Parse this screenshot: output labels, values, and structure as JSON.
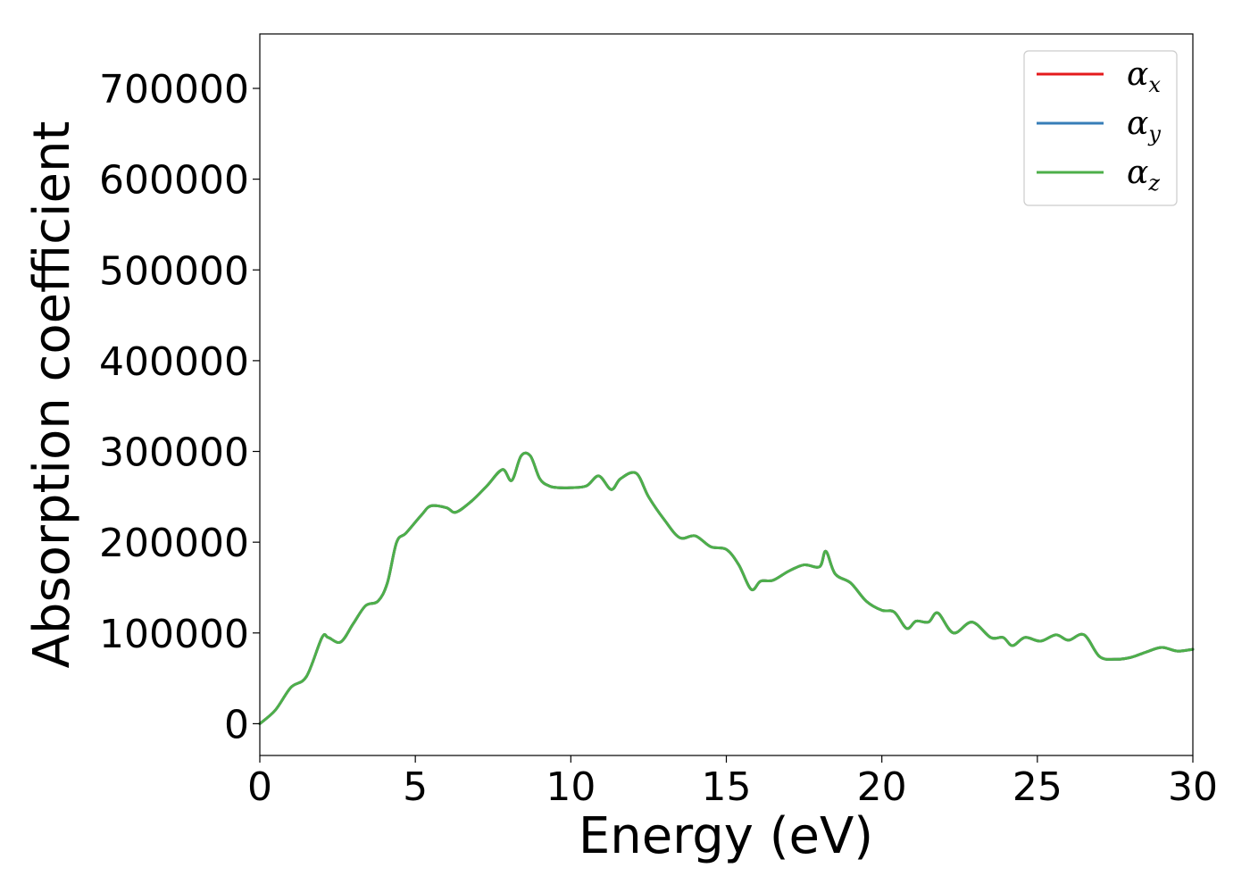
{
  "chart_data": {
    "type": "line",
    "title": "",
    "xlabel": "Energy (eV)",
    "ylabel": "Absorption coefficient",
    "xlim": [
      0,
      30
    ],
    "ylim": [
      -35000,
      760000
    ],
    "xticks": [
      0,
      5,
      10,
      15,
      20,
      25,
      30
    ],
    "yticks": [
      0,
      100000,
      200000,
      300000,
      400000,
      500000,
      600000,
      700000
    ],
    "xtick_labels": [
      "0",
      "5",
      "10",
      "15",
      "20",
      "25",
      "30"
    ],
    "ytick_labels": [
      "0",
      "100000",
      "200000",
      "300000",
      "400000",
      "500000",
      "600000",
      "700000"
    ],
    "grid": false,
    "legend_position": "top-right",
    "series": [
      {
        "name": "α_x",
        "symbol": "α",
        "subscript": "x",
        "color": "#e41a1c",
        "x": [
          0,
          0.5,
          1,
          1.5,
          2,
          2.2,
          2.6,
          3,
          3.4,
          3.8,
          4.1,
          4.4,
          4.7,
          5.2,
          5.5,
          6.0,
          6.3,
          6.8,
          7.3,
          7.8,
          8.1,
          8.4,
          8.7,
          9.0,
          9.3,
          9.6,
          10.0,
          10.5,
          10.9,
          11.3,
          11.6,
          12.1,
          12.5,
          13.0,
          13.5,
          14.0,
          14.5,
          15.0,
          15.4,
          15.8,
          16.1,
          16.5,
          17.0,
          17.5,
          18.0,
          18.2,
          18.5,
          19.0,
          19.5,
          20.0,
          20.4,
          20.8,
          21.1,
          21.5,
          21.8,
          22.3,
          22.9,
          23.5,
          23.9,
          24.2,
          24.6,
          25.1,
          25.6,
          26.0,
          26.5,
          27.0,
          27.5,
          28.0,
          28.5,
          29.0,
          29.5,
          30.0
        ],
        "y": [
          0,
          15000,
          40000,
          52000,
          95000,
          95000,
          90000,
          110000,
          130000,
          135000,
          155000,
          200000,
          210000,
          230000,
          240000,
          238000,
          233000,
          245000,
          262000,
          280000,
          268000,
          295000,
          295000,
          270000,
          262000,
          260000,
          260000,
          262000,
          273000,
          258000,
          270000,
          276000,
          250000,
          225000,
          205000,
          207000,
          195000,
          192000,
          175000,
          148000,
          157000,
          158000,
          168000,
          175000,
          173000,
          190000,
          165000,
          155000,
          135000,
          125000,
          123000,
          105000,
          113000,
          112000,
          122000,
          100000,
          112000,
          95000,
          95000,
          86000,
          95000,
          91000,
          98000,
          92000,
          98000,
          74000,
          71000,
          73000,
          79000,
          84000,
          80000,
          82000
        ]
      },
      {
        "name": "α_y",
        "symbol": "α",
        "subscript": "y",
        "color": "#377eb8",
        "x": [
          0,
          0.5,
          1,
          1.5,
          2,
          2.2,
          2.6,
          3,
          3.4,
          3.8,
          4.1,
          4.4,
          4.7,
          5.2,
          5.5,
          6.0,
          6.3,
          6.8,
          7.3,
          7.8,
          8.1,
          8.4,
          8.7,
          9.0,
          9.3,
          9.6,
          10.0,
          10.5,
          10.9,
          11.3,
          11.6,
          12.1,
          12.5,
          13.0,
          13.5,
          14.0,
          14.5,
          15.0,
          15.4,
          15.8,
          16.1,
          16.5,
          17.0,
          17.5,
          18.0,
          18.2,
          18.5,
          19.0,
          19.5,
          20.0,
          20.4,
          20.8,
          21.1,
          21.5,
          21.8,
          22.3,
          22.9,
          23.5,
          23.9,
          24.2,
          24.6,
          25.1,
          25.6,
          26.0,
          26.5,
          27.0,
          27.5,
          28.0,
          28.5,
          29.0,
          29.5,
          30.0
        ],
        "y": [
          0,
          15000,
          40000,
          52000,
          95000,
          95000,
          90000,
          110000,
          130000,
          135000,
          155000,
          200000,
          210000,
          230000,
          240000,
          238000,
          233000,
          245000,
          262000,
          280000,
          268000,
          295000,
          295000,
          270000,
          262000,
          260000,
          260000,
          262000,
          273000,
          258000,
          270000,
          276000,
          250000,
          225000,
          205000,
          207000,
          195000,
          192000,
          175000,
          148000,
          157000,
          158000,
          168000,
          175000,
          173000,
          190000,
          165000,
          155000,
          135000,
          125000,
          123000,
          105000,
          113000,
          112000,
          122000,
          100000,
          112000,
          95000,
          95000,
          86000,
          95000,
          91000,
          98000,
          92000,
          98000,
          74000,
          71000,
          73000,
          79000,
          84000,
          80000,
          82000
        ]
      },
      {
        "name": "α_z",
        "symbol": "α",
        "subscript": "z",
        "color": "#4daf4a",
        "x": [
          0,
          0.5,
          1,
          1.5,
          2,
          2.2,
          2.6,
          3,
          3.4,
          3.8,
          4.1,
          4.4,
          4.7,
          5.2,
          5.5,
          6.0,
          6.3,
          6.8,
          7.3,
          7.8,
          8.1,
          8.4,
          8.7,
          9.0,
          9.3,
          9.6,
          10.0,
          10.5,
          10.9,
          11.3,
          11.6,
          12.1,
          12.5,
          13.0,
          13.5,
          14.0,
          14.5,
          15.0,
          15.4,
          15.8,
          16.1,
          16.5,
          17.0,
          17.5,
          18.0,
          18.2,
          18.5,
          19.0,
          19.5,
          20.0,
          20.4,
          20.8,
          21.1,
          21.5,
          21.8,
          22.3,
          22.9,
          23.5,
          23.9,
          24.2,
          24.6,
          25.1,
          25.6,
          26.0,
          26.5,
          27.0,
          27.5,
          28.0,
          28.5,
          29.0,
          29.5,
          30.0
        ],
        "y": [
          0,
          15000,
          40000,
          52000,
          95000,
          95000,
          90000,
          110000,
          130000,
          135000,
          155000,
          200000,
          210000,
          230000,
          240000,
          238000,
          233000,
          245000,
          262000,
          280000,
          268000,
          295000,
          295000,
          270000,
          262000,
          260000,
          260000,
          262000,
          273000,
          258000,
          270000,
          276000,
          250000,
          225000,
          205000,
          207000,
          195000,
          192000,
          175000,
          148000,
          157000,
          158000,
          168000,
          175000,
          173000,
          190000,
          165000,
          155000,
          135000,
          125000,
          123000,
          105000,
          113000,
          112000,
          122000,
          100000,
          112000,
          95000,
          95000,
          86000,
          95000,
          91000,
          98000,
          92000,
          98000,
          74000,
          71000,
          73000,
          79000,
          84000,
          80000,
          82000
        ]
      }
    ]
  }
}
